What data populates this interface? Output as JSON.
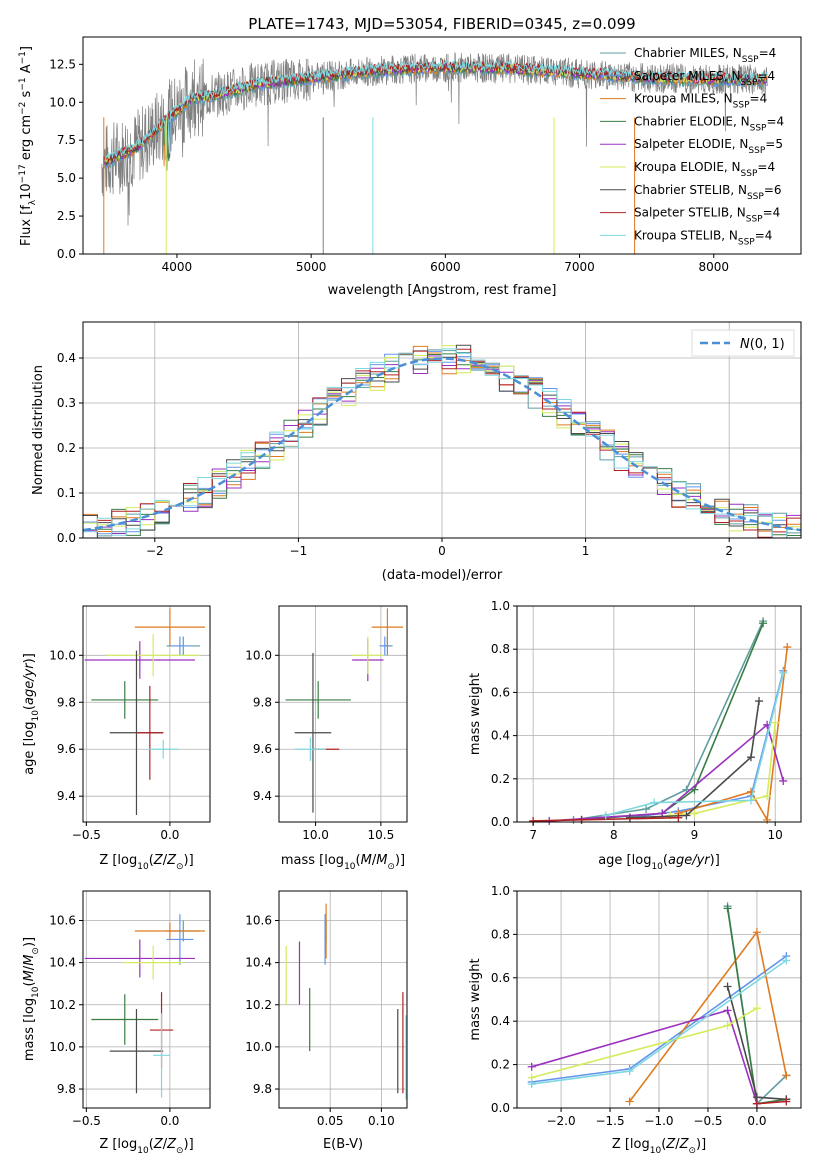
{
  "figure": {
    "title": "PLATE=1743, MJD=53054, FIBERID=0345, z=0.099"
  },
  "legend": [
    {
      "label": "Chabrier MILES, N",
      "sub": "SSP",
      "suffix": "=4",
      "color": "#5f9ea0"
    },
    {
      "label": "Salpeter MILES, N",
      "sub": "SSP",
      "suffix": "=4",
      "color": "#6495ed"
    },
    {
      "label": "Kroupa MILES, N",
      "sub": "SSP",
      "suffix": "=4",
      "color": "#e07a1f"
    },
    {
      "label": "Chabrier ELODIE, N",
      "sub": "SSP",
      "suffix": "=4",
      "color": "#3a7d44"
    },
    {
      "label": "Salpeter ELODIE, N",
      "sub": "SSP",
      "suffix": "=5",
      "color": "#9b30c0"
    },
    {
      "label": "Kroupa ELODIE, N",
      "sub": "SSP",
      "suffix": "=4",
      "color": "#d4ec5c"
    },
    {
      "label": "Chabrier STELIB, N",
      "sub": "SSP",
      "suffix": "=6",
      "color": "#4a4a4a"
    },
    {
      "label": "Salpeter STELIB, N",
      "sub": "SSP",
      "suffix": "=4",
      "color": "#b22222"
    },
    {
      "label": "Kroupa STELIB, N",
      "sub": "SSP",
      "suffix": "=4",
      "color": "#7fd8e0"
    }
  ],
  "chart_data": [
    {
      "id": "spectrum",
      "type": "line",
      "xlabel": "wavelength [Angstrom, rest frame]",
      "ylabel": "Flux [f",
      "ylabel_sub": "λ",
      "ylabel_rest": "10",
      "ylabel_exp": "−17",
      "ylabel_tail": " erg cm",
      "ylim": [
        0,
        14.3
      ],
      "xlim": [
        3300,
        8650
      ],
      "xticks": [
        4000,
        5000,
        6000,
        7000,
        8000
      ],
      "yticks": [
        0.0,
        2.5,
        5.0,
        7.5,
        10.0,
        12.5
      ],
      "series_knots": {
        "x": [
          3450,
          3700,
          3900,
          4100,
          4300,
          4600,
          5000,
          5500,
          6000,
          6500,
          7000,
          7500,
          8000,
          8400
        ],
        "y": [
          6.0,
          7.0,
          8.6,
          10.2,
          10.5,
          11.2,
          11.6,
          12.1,
          12.3,
          12.2,
          11.9,
          11.6,
          11.5,
          11.5
        ]
      }
    },
    {
      "id": "residuals",
      "type": "line",
      "xlabel": "(data-model)/error",
      "ylabel": "Normed distribution",
      "xlim": [
        -2.5,
        2.5
      ],
      "ylim": [
        0,
        0.48
      ],
      "xticks": [
        -2,
        -1,
        0,
        1,
        2
      ],
      "yticks": [
        0.0,
        0.1,
        0.2,
        0.3,
        0.4
      ],
      "gauss_label": "N(0, 1)",
      "gauss_color": "#4a90d9"
    },
    {
      "id": "age_vs_Z",
      "type": "scatter",
      "xlabel": "Z [log",
      "xlabel_sub": "10",
      "xlabel_tail": "(Z/Z",
      "ylabel": "age  [log",
      "xlim": [
        -0.52,
        0.24
      ],
      "ylim": [
        9.29,
        10.21
      ],
      "xticks": [
        -0.5,
        0.0
      ],
      "yticks": [
        9.4,
        9.6,
        9.8,
        10.0
      ],
      "points": [
        {
          "series": 0,
          "x": 0.08,
          "y": 10.04,
          "xerr": 0.1,
          "yerr": 0.04
        },
        {
          "series": 1,
          "x": 0.06,
          "y": 10.04,
          "xerr": 0.06,
          "yerr": 0.04
        },
        {
          "series": 2,
          "x": 0.0,
          "y": 10.12,
          "xerr": 0.21,
          "yerr": 0.08
        },
        {
          "series": 3,
          "x": -0.27,
          "y": 9.81,
          "xerr": 0.2,
          "yerr": 0.08
        },
        {
          "series": 4,
          "x": -0.18,
          "y": 9.98,
          "xerr": 0.33,
          "yerr": 0.08
        },
        {
          "series": 5,
          "x": -0.1,
          "y": 10.0,
          "xerr": 0.28,
          "yerr": 0.09
        },
        {
          "series": 6,
          "x": -0.2,
          "y": 9.67,
          "xerr": 0.16,
          "yerr": 0.35
        },
        {
          "series": 7,
          "x": -0.12,
          "y": 9.67,
          "xerr": 0.08,
          "yerr": 0.2
        },
        {
          "series": 8,
          "x": -0.04,
          "y": 9.6,
          "xerr": 0.09,
          "yerr": 0.04
        }
      ]
    },
    {
      "id": "age_vs_mass",
      "type": "scatter",
      "xlabel": "mass [log",
      "xlabel_sub": "10",
      "xlabel_tail": "(M/M",
      "xlim": [
        9.72,
        10.7
      ],
      "ylim": [
        9.29,
        10.21
      ],
      "xticks": [
        10.0,
        10.5
      ],
      "yticks": [
        9.4,
        9.6,
        9.8,
        10.0
      ],
      "points": [
        {
          "series": 0,
          "x": 10.55,
          "y": 10.04,
          "xerr": 0.04,
          "yerr": 0.04
        },
        {
          "series": 1,
          "x": 10.53,
          "y": 10.04,
          "xerr": 0.04,
          "yerr": 0.04
        },
        {
          "series": 2,
          "x": 10.55,
          "y": 10.12,
          "xerr": 0.12,
          "yerr": 0.08
        },
        {
          "series": 3,
          "x": 10.02,
          "y": 9.81,
          "xerr": 0.25,
          "yerr": 0.08
        },
        {
          "series": 4,
          "x": 10.4,
          "y": 9.98,
          "xerr": 0.12,
          "yerr": 0.09
        },
        {
          "series": 5,
          "x": 10.4,
          "y": 10.0,
          "xerr": 0.12,
          "yerr": 0.08
        },
        {
          "series": 6,
          "x": 9.98,
          "y": 9.67,
          "xerr": 0.14,
          "yerr": 0.34
        },
        {
          "series": 7,
          "x": 10.08,
          "y": 9.6,
          "xerr": 0.1,
          "yerr": 0.0
        },
        {
          "series": 8,
          "x": 9.96,
          "y": 9.6,
          "xerr": 0.12,
          "yerr": 0.05
        }
      ]
    },
    {
      "id": "massweight_vs_age",
      "type": "line",
      "xlabel": "age  [log",
      "ylabel": "mass weight",
      "xlim": [
        6.8,
        10.32
      ],
      "ylim": [
        0,
        1.0
      ],
      "xticks": [
        7,
        8,
        9,
        10
      ],
      "yticks": [
        0.0,
        0.2,
        0.4,
        0.6,
        0.8,
        1.0
      ],
      "series": [
        {
          "series": 0,
          "x": [
            7.5,
            8.4,
            8.9,
            9.85
          ],
          "y": [
            0.01,
            0.06,
            0.15,
            0.93
          ]
        },
        {
          "series": 1,
          "x": [
            8.2,
            8.8,
            9.7,
            10.1
          ],
          "y": [
            0.02,
            0.05,
            0.12,
            0.7
          ]
        },
        {
          "series": 2,
          "x": [
            8.8,
            9.7,
            9.9,
            10.15
          ],
          "y": [
            0.04,
            0.14,
            0.01,
            0.81
          ]
        },
        {
          "series": 3,
          "x": [
            7.6,
            8.6,
            9.0,
            9.85
          ],
          "y": [
            0.01,
            0.04,
            0.15,
            0.92
          ]
        },
        {
          "series": 4,
          "x": [
            7.2,
            8.6,
            9.9,
            10.1
          ],
          "y": [
            0.005,
            0.04,
            0.45,
            0.19
          ]
        },
        {
          "series": 5,
          "x": [
            8.7,
            9.0,
            9.9,
            10.0
          ],
          "y": [
            0.03,
            0.04,
            0.12,
            0.46
          ]
        },
        {
          "series": 6,
          "x": [
            8.2,
            8.9,
            9.7,
            9.8
          ],
          "y": [
            0.02,
            0.03,
            0.3,
            0.56
          ]
        },
        {
          "series": 7,
          "x": [
            7.0,
            7.6,
            8.8
          ],
          "y": [
            0.005,
            0.01,
            0.02
          ]
        },
        {
          "series": 8,
          "x": [
            7.9,
            8.5,
            9.7,
            10.1
          ],
          "y": [
            0.03,
            0.09,
            0.1,
            0.69
          ]
        }
      ]
    },
    {
      "id": "mass_vs_Z",
      "type": "scatter",
      "xlabel": "Z [log",
      "ylabel": "mass [log",
      "xlim": [
        -0.52,
        0.24
      ],
      "ylim": [
        9.71,
        10.74
      ],
      "xticks": [
        -0.5,
        0.0
      ],
      "yticks": [
        9.8,
        10.0,
        10.2,
        10.4,
        10.6
      ],
      "points": [
        {
          "series": 0,
          "x": 0.08,
          "y": 10.55,
          "xerr": 0.1,
          "yerr": 0.05
        },
        {
          "series": 1,
          "x": 0.06,
          "y": 10.51,
          "xerr": 0.08,
          "yerr": 0.12
        },
        {
          "series": 2,
          "x": 0.0,
          "y": 10.55,
          "xerr": 0.21,
          "yerr": 0.04
        },
        {
          "series": 3,
          "x": -0.27,
          "y": 10.13,
          "xerr": 0.2,
          "yerr": 0.12
        },
        {
          "series": 4,
          "x": -0.18,
          "y": 10.42,
          "xerr": 0.33,
          "yerr": 0.09
        },
        {
          "series": 5,
          "x": -0.1,
          "y": 10.4,
          "xerr": 0.18,
          "yerr": 0.08
        },
        {
          "series": 6,
          "x": -0.2,
          "y": 9.98,
          "xerr": 0.16,
          "yerr": 0.2
        },
        {
          "series": 7,
          "x": -0.05,
          "y": 10.08,
          "xerr": 0.07,
          "yerr": 0.18
        },
        {
          "series": 8,
          "x": -0.05,
          "y": 9.96,
          "xerr": 0.05,
          "yerr": 0.2
        }
      ]
    },
    {
      "id": "mass_vs_ebv",
      "type": "scatter",
      "xlabel": "E(B-V)",
      "xlim": [
        0.0,
        0.125
      ],
      "ylim": [
        9.71,
        10.74
      ],
      "xticks": [
        0.05,
        0.1
      ],
      "yticks": [
        9.8,
        10.0,
        10.2,
        10.4,
        10.6
      ],
      "points": [
        {
          "series": 0,
          "x": 0.046,
          "y": 10.55,
          "xerr": 0.0,
          "yerr": 0.05
        },
        {
          "series": 1,
          "x": 0.045,
          "y": 10.51,
          "xerr": 0.0,
          "yerr": 0.12
        },
        {
          "series": 2,
          "x": 0.046,
          "y": 10.55,
          "xerr": 0.0,
          "yerr": 0.13
        },
        {
          "series": 3,
          "x": 0.03,
          "y": 10.13,
          "xerr": 0.0,
          "yerr": 0.15
        },
        {
          "series": 4,
          "x": 0.02,
          "y": 10.35,
          "xerr": 0.0,
          "yerr": 0.15
        },
        {
          "series": 5,
          "x": 0.007,
          "y": 10.34,
          "xerr": 0.0,
          "yerr": 0.14
        },
        {
          "series": 6,
          "x": 0.116,
          "y": 9.98,
          "xerr": 0.0,
          "yerr": 0.2
        },
        {
          "series": 7,
          "x": 0.121,
          "y": 10.02,
          "xerr": 0.0,
          "yerr": 0.24
        },
        {
          "series": 8,
          "x": 0.124,
          "y": 9.95,
          "xerr": 0.0,
          "yerr": 0.2
        }
      ]
    },
    {
      "id": "massweight_vs_Z",
      "type": "line",
      "xlabel": "Z [log",
      "ylabel": "mass weight",
      "xlim": [
        -2.45,
        0.45
      ],
      "ylim": [
        0,
        1.0
      ],
      "xticks": [
        -2.0,
        -1.5,
        -1.0,
        -0.5,
        0.0
      ],
      "yticks": [
        0.0,
        0.2,
        0.4,
        0.6,
        0.8,
        1.0
      ],
      "series": [
        {
          "series": 0,
          "x": [
            -0.3,
            0.0,
            0.3
          ],
          "y": [
            0.93,
            0.02,
            0.15
          ]
        },
        {
          "series": 1,
          "x": [
            -2.3,
            -1.3,
            0.3
          ],
          "y": [
            0.12,
            0.18,
            0.7
          ]
        },
        {
          "series": 2,
          "x": [
            -1.3,
            0.0,
            0.3
          ],
          "y": [
            0.03,
            0.81,
            0.15
          ]
        },
        {
          "series": 3,
          "x": [
            -0.3,
            0.0,
            0.3
          ],
          "y": [
            0.92,
            0.02,
            0.04
          ]
        },
        {
          "series": 4,
          "x": [
            -2.3,
            -0.3,
            0.0
          ],
          "y": [
            0.19,
            0.45,
            0.02
          ]
        },
        {
          "series": 5,
          "x": [
            -2.3,
            -0.3,
            0.0
          ],
          "y": [
            0.14,
            0.38,
            0.46
          ]
        },
        {
          "series": 6,
          "x": [
            -0.3,
            0.0,
            0.3
          ],
          "y": [
            0.56,
            0.05,
            0.04
          ]
        },
        {
          "series": 7,
          "x": [
            0.0,
            0.3
          ],
          "y": [
            0.02,
            0.03
          ]
        },
        {
          "series": 8,
          "x": [
            -2.3,
            -1.3,
            0.3
          ],
          "y": [
            0.11,
            0.17,
            0.68
          ]
        }
      ]
    }
  ]
}
